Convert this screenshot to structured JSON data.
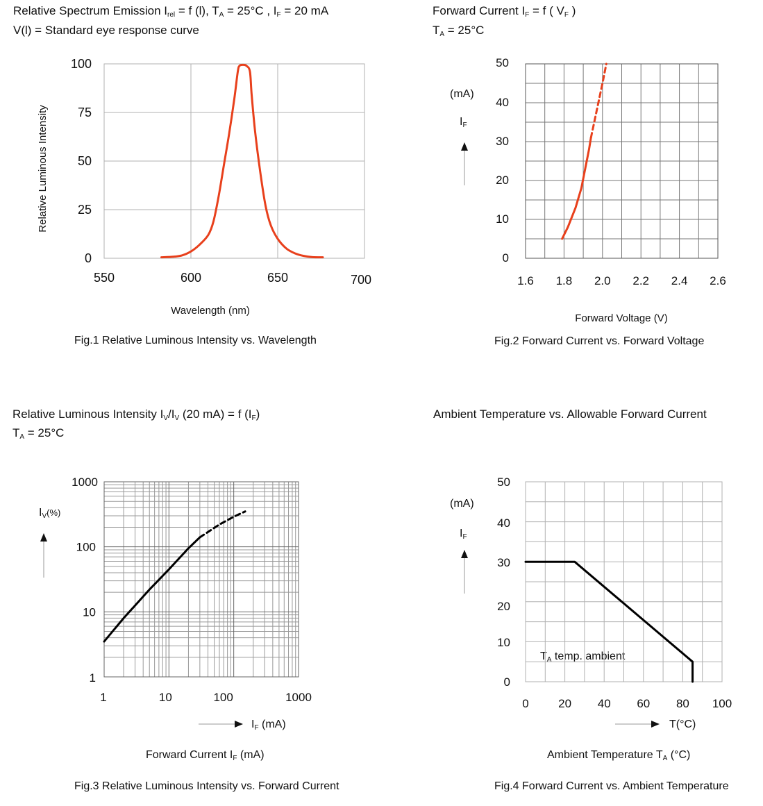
{
  "fig1": {
    "header_line1_prefix": "Relative Spectrum Emission I",
    "header_line1_sub1": "rel",
    "header_line1_mid": " = f (l), T",
    "header_line1_sub2": "A",
    "header_line1_mid2": " = 25°C , I",
    "header_line1_sub3": "F",
    "header_line1_end": " = 20  mA",
    "header_line2": "V(l) = Standard eye response curve",
    "caption": "Fig.1 Relative Luminous Intensity vs. Wavelength"
  },
  "fig2": {
    "header_line1_prefix": "Forward Current I",
    "header_line1_sub1": "F",
    "header_line1_mid": " = f ( V",
    "header_line1_sub2": "F",
    "header_line1_end": " )",
    "header_line2_prefix": "T",
    "header_line2_sub": "A",
    "header_line2_end": " = 25°C",
    "unit_label": "(mA)",
    "axis_symbol": "I",
    "axis_symbol_sub": "F",
    "caption": "Fig.2 Forward Current vs. Forward Voltage"
  },
  "fig3": {
    "header_line1_prefix": "Relative Luminous Intensity I",
    "header_line1_sub1": "V",
    "header_line1_slash": "/I",
    "header_line1_sub2": "V",
    "header_line1_mid": " (20 mA) = f (I",
    "header_line1_sub3": "F",
    "header_line1_end": ")",
    "header_line2_prefix": "T",
    "header_line2_sub": "A",
    "header_line2_end": " = 25°C",
    "axis_symbol": "I",
    "axis_symbol_sub": "V",
    "axis_symbol_unit": "(%)",
    "x_arrow_prefix": "I",
    "x_arrow_sub": "F",
    "x_arrow_end": " (mA)",
    "xlabel_prefix": "Forward Current I",
    "xlabel_sub": "F",
    "xlabel_end": " (mA)",
    "caption": "Fig.3 Relative Luminous Intensity vs. Forward Current"
  },
  "fig4": {
    "header_line1": "Ambient Temperature vs. Allowable Forward Current",
    "unit_label": "(mA)",
    "axis_symbol": "I",
    "axis_symbol_sub": "F",
    "annotation_prefix": "T",
    "annotation_sub": "A",
    "annotation_end": " temp. ambient",
    "x_arrow_label": "T(°C)",
    "xlabel_prefix": "Ambient Temperature T",
    "xlabel_sub": "A",
    "xlabel_end": " (°C)",
    "caption": "Fig.4 Forward Current vs. Ambient Temperature"
  },
  "colors": {
    "curve_red": "#e8401c",
    "curve_black": "#000000",
    "grid": "#b0b0b0"
  },
  "chart_data": [
    {
      "type": "line",
      "title": "Relative Spectrum Emission",
      "xlabel": "Wavelength (nm)",
      "ylabel": "Relative Luminous Intensity",
      "xlim": [
        550,
        700
      ],
      "ylim": [
        0,
        100
      ],
      "xticks": [
        "550",
        "600",
        "650",
        "700"
      ],
      "yticks": [
        "0",
        "25",
        "50",
        "75",
        "100"
      ],
      "series": [
        {
          "name": "spectrum",
          "x": [
            583,
            590,
            595,
            600,
            605,
            610,
            613,
            616,
            619,
            622,
            625,
            627,
            628,
            630,
            632,
            634,
            635,
            637,
            640,
            643,
            646,
            650,
            655,
            660,
            665,
            670,
            676
          ],
          "y": [
            0.5,
            0.8,
            1.5,
            3.5,
            7,
            12,
            19,
            32,
            48,
            64,
            82,
            96,
            99,
            99.5,
            99,
            96,
            84,
            65,
            44,
            27,
            17,
            10,
            5,
            2.5,
            1.2,
            0.6,
            0.5
          ]
        }
      ]
    },
    {
      "type": "line",
      "title": "Forward Current vs. Forward Voltage",
      "xlabel": "Forward Voltage (V)",
      "ylabel": "(mA)",
      "xlim": [
        1.6,
        2.6
      ],
      "ylim": [
        0,
        50
      ],
      "xticks": [
        "1.6",
        "1.8",
        "2.0",
        "2.2",
        "2.4",
        "2.6"
      ],
      "yticks": [
        "0",
        "10",
        "20",
        "30",
        "40",
        "50"
      ],
      "series": [
        {
          "name": "measured",
          "style": "solid",
          "x": [
            1.79,
            1.82,
            1.86,
            1.89,
            1.91,
            1.93,
            1.94
          ],
          "y": [
            5,
            8,
            13,
            18,
            23,
            28,
            31
          ]
        },
        {
          "name": "extrapolated",
          "style": "dashed",
          "x": [
            1.94,
            1.97,
            2.0,
            2.02
          ],
          "y": [
            31,
            38,
            45,
            50
          ]
        }
      ]
    },
    {
      "type": "line",
      "title": "Relative Luminous Intensity vs. Forward Current",
      "xlabel": "Forward Current IF (mA)",
      "ylabel": "IV (%)",
      "xscale": "log",
      "yscale": "log",
      "xlim": [
        1,
        1000
      ],
      "ylim": [
        1,
        1000
      ],
      "xticks": [
        "1",
        "10",
        "100",
        "1000"
      ],
      "yticks": [
        "1",
        "10",
        "100",
        "1000"
      ],
      "series": [
        {
          "name": "measured",
          "style": "solid",
          "x": [
            1,
            2,
            5,
            10,
            20,
            30
          ],
          "y": [
            3.5,
            8,
            22,
            45,
            95,
            140
          ]
        },
        {
          "name": "extrapolated",
          "style": "dashed",
          "x": [
            30,
            60,
            100,
            150
          ],
          "y": [
            140,
            220,
            290,
            350
          ]
        }
      ]
    },
    {
      "type": "line",
      "title": "Ambient Temperature vs. Allowable Forward Current",
      "xlabel": "Ambient Temperature TA (°C)",
      "ylabel": "(mA)",
      "xlim": [
        0,
        100
      ],
      "ylim": [
        0,
        50
      ],
      "xticks": [
        "0",
        "20",
        "40",
        "60",
        "80",
        "100"
      ],
      "yticks": [
        "0",
        "10",
        "20",
        "30",
        "40",
        "50"
      ],
      "series": [
        {
          "name": "derating",
          "x": [
            0,
            25,
            85,
            85
          ],
          "y": [
            30,
            30,
            5,
            0
          ]
        }
      ]
    }
  ]
}
